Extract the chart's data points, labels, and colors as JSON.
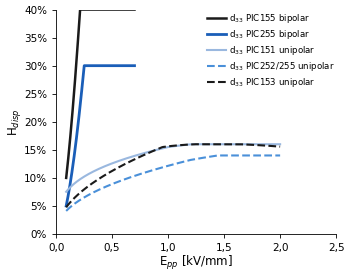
{
  "title": "",
  "ylabel": "H$_{disp}$",
  "xlabel": "E$_{pp}$ [kV/mm]",
  "xlim": [
    0,
    2.5
  ],
  "ylim": [
    0,
    0.4
  ],
  "yticks": [
    0.0,
    0.05,
    0.1,
    0.15,
    0.2,
    0.25,
    0.3,
    0.35,
    0.4
  ],
  "xticks": [
    0.0,
    0.5,
    1.0,
    1.5,
    2.0,
    2.5
  ],
  "legend": [
    {
      "label": "d$_{33}$ PIC155 bipolar",
      "color": "#1a1a1a",
      "ls": "solid",
      "lw": 1.8
    },
    {
      "label": "d$_{33}$ PIC255 bipolar",
      "color": "#1a5eb8",
      "ls": "solid",
      "lw": 2.0
    },
    {
      "label": "d$_{33}$ PIC151 unipolar",
      "color": "#9ab8df",
      "ls": "solid",
      "lw": 1.5
    },
    {
      "label": "d$_{33}$ PIC252/255 unipolar",
      "color": "#4a90d9",
      "ls": "dashed",
      "lw": 1.5
    },
    {
      "label": "d$_{33}$ PIC153 unipolar",
      "color": "#1a1a1a",
      "ls": "dashed",
      "lw": 1.5
    }
  ],
  "background_color": "#ffffff"
}
